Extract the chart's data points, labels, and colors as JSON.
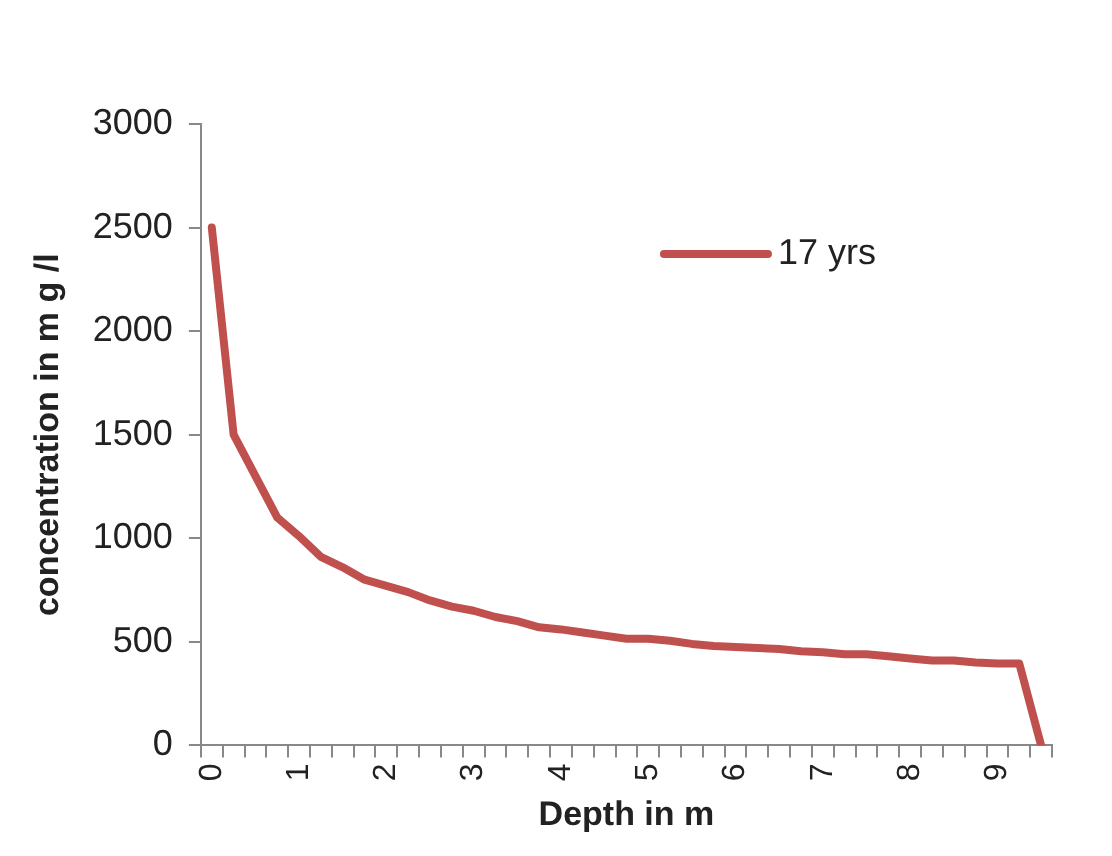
{
  "chart_data": {
    "type": "line",
    "xlabel": "Depth in m",
    "ylabel": "concentration in m g /l",
    "categories": [
      "0",
      null,
      null,
      null,
      "1",
      null,
      null,
      null,
      "2",
      null,
      null,
      null,
      "3",
      null,
      null,
      null,
      "4",
      null,
      null,
      null,
      "5",
      null,
      null,
      null,
      "6",
      null,
      null,
      null,
      "7",
      null,
      null,
      null,
      "8",
      null,
      null,
      null,
      "9",
      null,
      null
    ],
    "series": [
      {
        "name": "17 yrs",
        "color": "#c0504d",
        "values": [
          2500,
          1500,
          1300,
          1100,
          1010,
          910,
          860,
          800,
          770,
          740,
          700,
          670,
          650,
          620,
          600,
          570,
          560,
          545,
          530,
          515,
          515,
          505,
          490,
          480,
          475,
          470,
          465,
          455,
          450,
          440,
          440,
          430,
          420,
          410,
          410,
          400,
          395,
          395,
          0
        ]
      }
    ],
    "ylim": [
      0,
      3000
    ],
    "yticks": [
      0,
      500,
      1000,
      1500,
      2000,
      2500,
      3000
    ],
    "grid": false,
    "legend": "top right",
    "marker": "none",
    "line_style": "solid"
  }
}
